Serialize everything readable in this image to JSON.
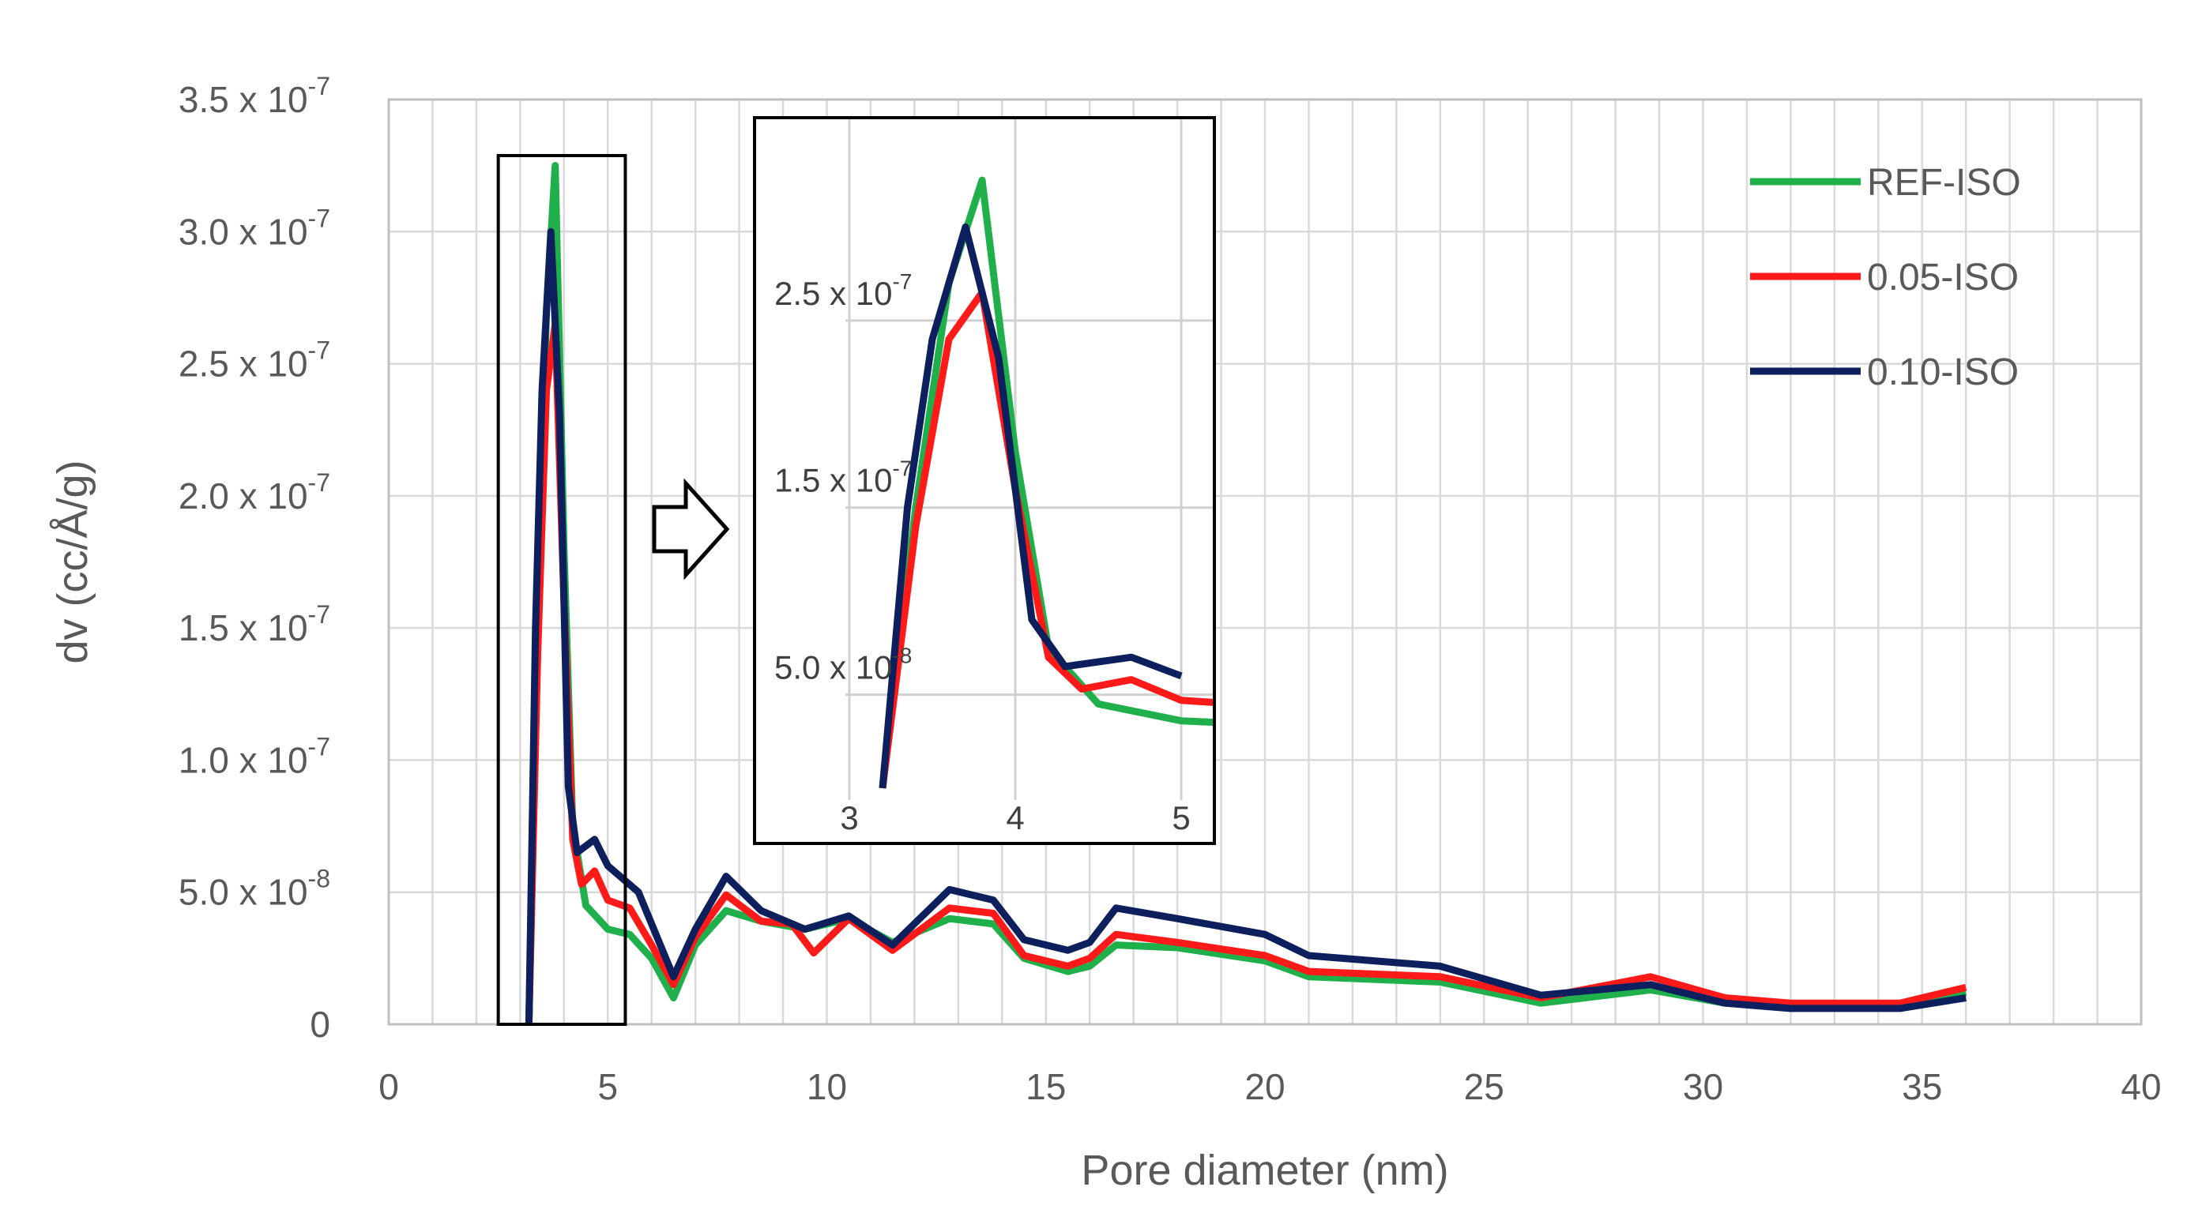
{
  "chart_data": {
    "type": "line",
    "title": "",
    "xlabel": "Pore diameter (nm)",
    "ylabel": "dv (cc/Å/g)",
    "xlim": [
      0,
      40
    ],
    "ylim": [
      0,
      3.5e-07
    ],
    "grid": true,
    "legend_position": "top-right",
    "x_ticks": [
      "0",
      "5",
      "10",
      "15",
      "20",
      "25",
      "30",
      "35",
      "40"
    ],
    "y_ticks": [
      {
        "mantissa": "0",
        "exp": ""
      },
      {
        "mantissa": "5.0 x 10",
        "exp": "-8"
      },
      {
        "mantissa": "1.0 x 10",
        "exp": "-7"
      },
      {
        "mantissa": "1.5 x 10",
        "exp": "-7"
      },
      {
        "mantissa": "2.0 x 10",
        "exp": "-7"
      },
      {
        "mantissa": "2.5 x 10",
        "exp": "-7"
      },
      {
        "mantissa": "3.0 x 10",
        "exp": "-7"
      },
      {
        "mantissa": "3.5 x 10",
        "exp": "-7"
      }
    ],
    "series": [
      {
        "name": "REF-ISO",
        "color": "#1fb04c",
        "points": [
          [
            3.2,
            0
          ],
          [
            3.4,
            1.5e-07
          ],
          [
            3.6,
            2.7e-07
          ],
          [
            3.8,
            3.25e-07
          ],
          [
            4.0,
            1.8e-07
          ],
          [
            4.2,
            7.5e-08
          ],
          [
            4.5,
            4.5e-08
          ],
          [
            5.0,
            3.6e-08
          ],
          [
            5.5,
            3.4e-08
          ],
          [
            6.0,
            2.5e-08
          ],
          [
            6.5,
            1e-08
          ],
          [
            7.0,
            3e-08
          ],
          [
            7.7,
            4.3e-08
          ],
          [
            8.5,
            3.9e-08
          ],
          [
            9.5,
            3.6e-08
          ],
          [
            10.5,
            4e-08
          ],
          [
            11.5,
            3.1e-08
          ],
          [
            12.8,
            4e-08
          ],
          [
            13.8,
            3.8e-08
          ],
          [
            14.5,
            2.5e-08
          ],
          [
            15.5,
            2e-08
          ],
          [
            16.0,
            2.2e-08
          ],
          [
            16.6,
            3e-08
          ],
          [
            18,
            2.9e-08
          ],
          [
            20,
            2.4e-08
          ],
          [
            21,
            1.8e-08
          ],
          [
            24,
            1.6e-08
          ],
          [
            26.3,
            8e-09
          ],
          [
            28.8,
            1.3e-08
          ],
          [
            30.5,
            8e-09
          ],
          [
            32,
            6e-09
          ],
          [
            34.5,
            7e-09
          ],
          [
            36,
            1.2e-08
          ]
        ]
      },
      {
        "name": "0.05-ISO",
        "color": "#ff1a1a",
        "points": [
          [
            3.2,
            0
          ],
          [
            3.4,
            1.4e-07
          ],
          [
            3.6,
            2.4e-07
          ],
          [
            3.8,
            2.65e-07
          ],
          [
            4.0,
            1.6e-07
          ],
          [
            4.2,
            7e-08
          ],
          [
            4.4,
            5.3e-08
          ],
          [
            4.7,
            5.8e-08
          ],
          [
            5.0,
            4.7e-08
          ],
          [
            5.5,
            4.4e-08
          ],
          [
            6.0,
            3e-08
          ],
          [
            6.5,
            1.5e-08
          ],
          [
            7.0,
            3.3e-08
          ],
          [
            7.7,
            4.9e-08
          ],
          [
            8.5,
            3.9e-08
          ],
          [
            9.2,
            3.8e-08
          ],
          [
            9.7,
            2.7e-08
          ],
          [
            10.5,
            4e-08
          ],
          [
            11.5,
            2.8e-08
          ],
          [
            12.8,
            4.4e-08
          ],
          [
            13.8,
            4.2e-08
          ],
          [
            14.5,
            2.6e-08
          ],
          [
            15.5,
            2.2e-08
          ],
          [
            16.0,
            2.5e-08
          ],
          [
            16.6,
            3.4e-08
          ],
          [
            18,
            3.1e-08
          ],
          [
            20,
            2.6e-08
          ],
          [
            21,
            2e-08
          ],
          [
            24,
            1.8e-08
          ],
          [
            26.3,
            1e-08
          ],
          [
            28.8,
            1.8e-08
          ],
          [
            30.5,
            1e-08
          ],
          [
            32,
            8e-09
          ],
          [
            34.5,
            8e-09
          ],
          [
            36,
            1.4e-08
          ]
        ]
      },
      {
        "name": "0.10-ISO",
        "color": "#0d1f5c",
        "points": [
          [
            3.2,
            0
          ],
          [
            3.35,
            1.5e-07
          ],
          [
            3.5,
            2.4e-07
          ],
          [
            3.7,
            3e-07
          ],
          [
            3.9,
            2.3e-07
          ],
          [
            4.1,
            9e-08
          ],
          [
            4.3,
            6.5e-08
          ],
          [
            4.7,
            7e-08
          ],
          [
            5.0,
            6e-08
          ],
          [
            5.7,
            5e-08
          ],
          [
            6.0,
            3.8e-08
          ],
          [
            6.5,
            1.8e-08
          ],
          [
            7.0,
            3.6e-08
          ],
          [
            7.7,
            5.6e-08
          ],
          [
            8.5,
            4.3e-08
          ],
          [
            9.5,
            3.6e-08
          ],
          [
            10.5,
            4.1e-08
          ],
          [
            11.5,
            3e-08
          ],
          [
            12.8,
            5.1e-08
          ],
          [
            13.8,
            4.7e-08
          ],
          [
            14.5,
            3.2e-08
          ],
          [
            15.5,
            2.8e-08
          ],
          [
            16.0,
            3.1e-08
          ],
          [
            16.6,
            4.4e-08
          ],
          [
            18,
            4e-08
          ],
          [
            20,
            3.4e-08
          ],
          [
            21,
            2.6e-08
          ],
          [
            24,
            2.2e-08
          ],
          [
            26.3,
            1.1e-08
          ],
          [
            28.8,
            1.5e-08
          ],
          [
            30.5,
            8e-09
          ],
          [
            32,
            6e-09
          ],
          [
            34.5,
            6e-09
          ],
          [
            36,
            1e-08
          ]
        ]
      }
    ],
    "inset": {
      "xlim": [
        3,
        5.2
      ],
      "ylim": [
        0,
        3.5e-07
      ],
      "x_ticks": [
        "3",
        "4",
        "5"
      ],
      "y_ticks": [
        {
          "mantissa": "5.0 x 10",
          "exp": "-8"
        },
        {
          "mantissa": "1.5 x 10",
          "exp": "-7"
        },
        {
          "mantissa": "2.5 x 10",
          "exp": "-7"
        }
      ]
    }
  }
}
